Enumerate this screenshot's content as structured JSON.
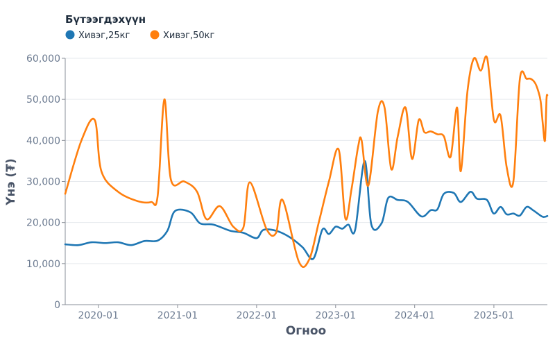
{
  "chart_data": {
    "type": "line",
    "legend_title": "Бүтээгдэхүүн",
    "xlabel": "Огноо",
    "ylabel": "Үнэ (₮)",
    "ylim": [
      0,
      60000
    ],
    "y_ticks": [
      0,
      10000,
      20000,
      30000,
      40000,
      50000,
      60000
    ],
    "y_tick_labels": [
      "0",
      "10,000",
      "20,000",
      "30,000",
      "40,000",
      "50,000",
      "60,000"
    ],
    "x_range": [
      "2019-08-01",
      "2025-09-05"
    ],
    "x_ticks": [
      "2020-01-01",
      "2021-01-01",
      "2022-01-01",
      "2023-01-01",
      "2024-01-01",
      "2025-01-01"
    ],
    "x_tick_labels": [
      "2020-01",
      "2021-01",
      "2022-01",
      "2023-01",
      "2024-01",
      "2025-01"
    ],
    "grid": true,
    "legend_position": "top-left",
    "series": [
      {
        "name": "Хивэг,25кг",
        "color": "#1f77b4",
        "points": [
          [
            "2019-08-01",
            14700
          ],
          [
            "2019-10-01",
            14500
          ],
          [
            "2019-12-01",
            15200
          ],
          [
            "2020-02-01",
            15000
          ],
          [
            "2020-04-01",
            15200
          ],
          [
            "2020-06-01",
            14500
          ],
          [
            "2020-08-01",
            15500
          ],
          [
            "2020-10-01",
            15600
          ],
          [
            "2020-11-15",
            18000
          ],
          [
            "2020-12-20",
            22800
          ],
          [
            "2021-03-01",
            22500
          ],
          [
            "2021-04-15",
            19800
          ],
          [
            "2021-06-15",
            19500
          ],
          [
            "2021-09-01",
            18000
          ],
          [
            "2021-11-01",
            17500
          ],
          [
            "2022-01-01",
            16200
          ],
          [
            "2022-02-01",
            18200
          ],
          [
            "2022-04-01",
            18000
          ],
          [
            "2022-06-01",
            16500
          ],
          [
            "2022-08-01",
            14000
          ],
          [
            "2022-09-20",
            11200
          ],
          [
            "2022-11-01",
            18300
          ],
          [
            "2022-12-01",
            17200
          ],
          [
            "2023-01-01",
            19000
          ],
          [
            "2023-02-01",
            18500
          ],
          [
            "2023-03-01",
            19500
          ],
          [
            "2023-04-01",
            18200
          ],
          [
            "2023-05-15",
            35000
          ],
          [
            "2023-06-15",
            19500
          ],
          [
            "2023-08-01",
            19800
          ],
          [
            "2023-09-01",
            26000
          ],
          [
            "2023-10-15",
            25500
          ],
          [
            "2023-12-01",
            25000
          ],
          [
            "2024-02-01",
            21500
          ],
          [
            "2024-03-15",
            23000
          ],
          [
            "2024-04-15",
            23200
          ],
          [
            "2024-05-15",
            27000
          ],
          [
            "2024-06-30",
            27200
          ],
          [
            "2024-08-01",
            25000
          ],
          [
            "2024-09-15",
            27500
          ],
          [
            "2024-10-15",
            25800
          ],
          [
            "2024-11-30",
            25500
          ],
          [
            "2024-12-31",
            22200
          ],
          [
            "2025-02-01",
            23800
          ],
          [
            "2025-03-01",
            22000
          ],
          [
            "2025-04-01",
            22200
          ],
          [
            "2025-05-01",
            21700
          ],
          [
            "2025-06-01",
            23800
          ],
          [
            "2025-07-01",
            23000
          ],
          [
            "2025-08-10",
            21500
          ],
          [
            "2025-08-25",
            21400
          ],
          [
            "2025-09-05",
            21600
          ]
        ]
      },
      {
        "name": "Хивэг,50кг",
        "color": "#ff7f0e",
        "points": [
          [
            "2019-08-01",
            27000
          ],
          [
            "2019-10-15",
            40000
          ],
          [
            "2019-12-15",
            45000
          ],
          [
            "2020-01-15",
            32500
          ],
          [
            "2020-04-01",
            27500
          ],
          [
            "2020-07-01",
            25200
          ],
          [
            "2020-09-01",
            25000
          ],
          [
            "2020-10-01",
            26500
          ],
          [
            "2020-11-01",
            50000
          ],
          [
            "2020-12-01",
            30500
          ],
          [
            "2021-02-01",
            30000
          ],
          [
            "2021-04-01",
            27500
          ],
          [
            "2021-05-15",
            20800
          ],
          [
            "2021-07-15",
            24000
          ],
          [
            "2021-09-15",
            19000
          ],
          [
            "2021-11-01",
            18800
          ],
          [
            "2021-12-01",
            29800
          ],
          [
            "2022-02-15",
            18500
          ],
          [
            "2022-04-01",
            17500
          ],
          [
            "2022-05-01",
            25500
          ],
          [
            "2022-07-15",
            10500
          ],
          [
            "2022-09-01",
            11000
          ],
          [
            "2022-10-15",
            20000
          ],
          [
            "2022-12-01",
            30000
          ],
          [
            "2023-01-15",
            37800
          ],
          [
            "2023-02-15",
            21000
          ],
          [
            "2023-03-15",
            28000
          ],
          [
            "2023-04-15",
            38500
          ],
          [
            "2023-05-01",
            40000
          ],
          [
            "2023-06-01",
            29000
          ],
          [
            "2023-07-15",
            47000
          ],
          [
            "2023-08-15",
            48000
          ],
          [
            "2023-09-15",
            33000
          ],
          [
            "2023-10-15",
            41000
          ],
          [
            "2023-11-20",
            48000
          ],
          [
            "2023-12-20",
            35500
          ],
          [
            "2024-01-20",
            45000
          ],
          [
            "2024-02-15",
            42000
          ],
          [
            "2024-03-15",
            42200
          ],
          [
            "2024-04-15",
            41500
          ],
          [
            "2024-05-15",
            41000
          ],
          [
            "2024-06-15",
            36000
          ],
          [
            "2024-07-15",
            48000
          ],
          [
            "2024-08-01",
            32500
          ],
          [
            "2024-09-01",
            52000
          ],
          [
            "2024-10-01",
            60000
          ],
          [
            "2024-11-01",
            57000
          ],
          [
            "2024-12-01",
            60000
          ],
          [
            "2025-01-01",
            45000
          ],
          [
            "2025-02-01",
            46000
          ],
          [
            "2025-03-01",
            33500
          ],
          [
            "2025-04-01",
            30000
          ],
          [
            "2025-05-01",
            55000
          ],
          [
            "2025-06-01",
            55000
          ],
          [
            "2025-06-20",
            55000
          ],
          [
            "2025-07-10",
            54000
          ],
          [
            "2025-07-25",
            52000
          ],
          [
            "2025-08-05",
            49500
          ],
          [
            "2025-08-15",
            44000
          ],
          [
            "2025-08-25",
            40000
          ],
          [
            "2025-09-01",
            50000
          ],
          [
            "2025-09-05",
            51000
          ]
        ]
      }
    ]
  }
}
